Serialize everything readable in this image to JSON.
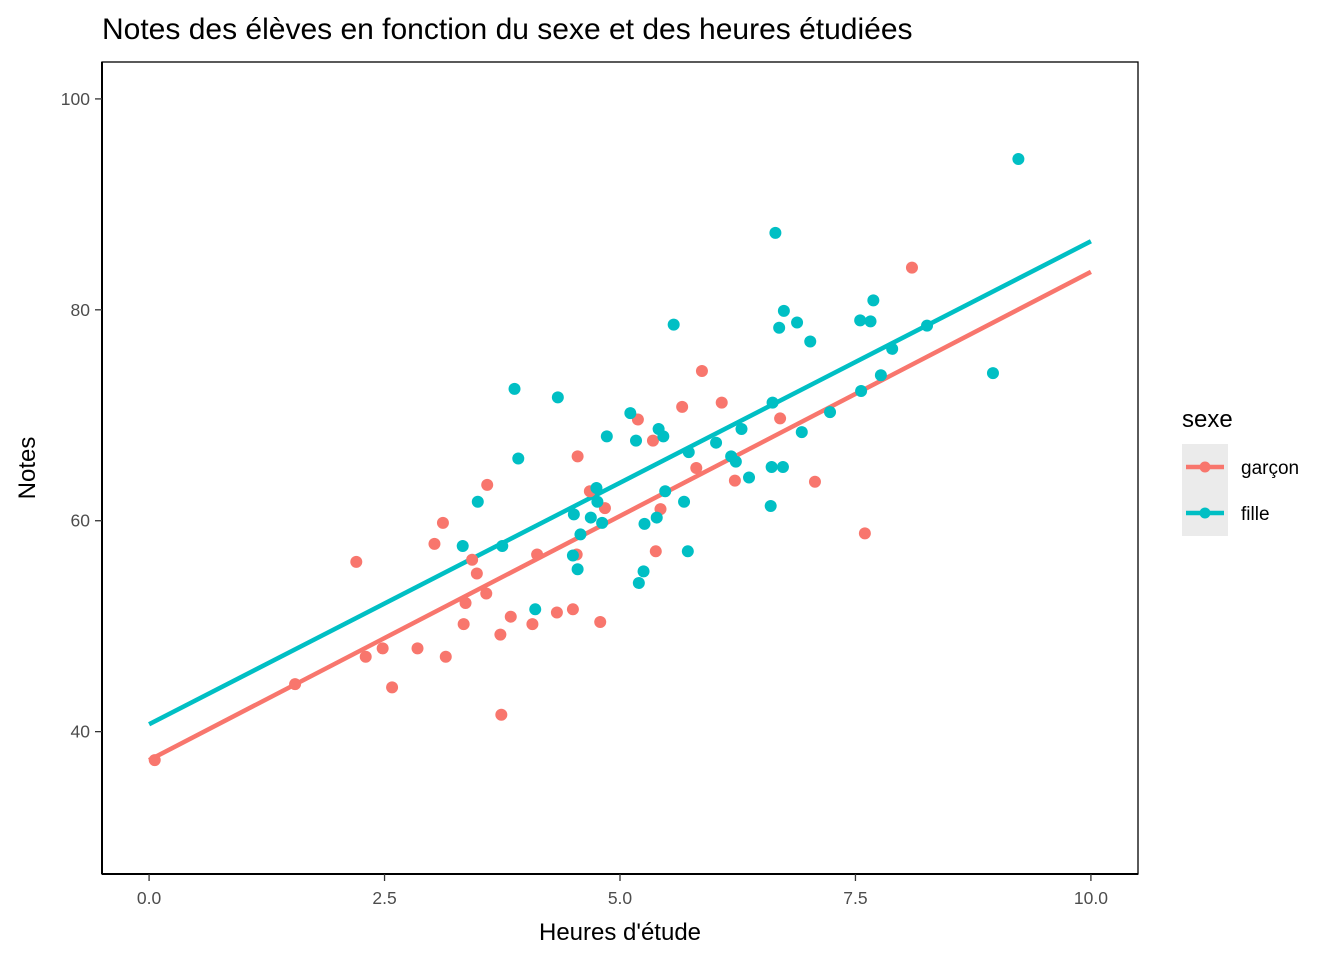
{
  "chart_data": {
    "type": "scatter",
    "title": "Notes des élèves en fonction du sexe et des heures étudiées",
    "xlabel": "Heures d'étude",
    "ylabel": "Notes",
    "xlim": [
      -0.5,
      10.5
    ],
    "ylim": [
      26.5,
      103.5
    ],
    "xticks": [
      0,
      2.5,
      5,
      7.5,
      10
    ],
    "xtick_labels": [
      "0.0",
      "2.5",
      "5.0",
      "7.5",
      "10.0"
    ],
    "yticks": [
      40,
      60,
      80,
      100
    ],
    "ytick_labels": [
      "40",
      "60",
      "80",
      "100"
    ],
    "grid": false,
    "legend": {
      "title": "sexe",
      "position": "right"
    },
    "series": [
      {
        "name": "garçon",
        "color": "#F8766D",
        "fit": {
          "x": [
            0.0,
            10.0
          ],
          "y": [
            37.3,
            83.6
          ]
        },
        "points": [
          [
            0.06,
            37.3
          ],
          [
            1.55,
            44.5
          ],
          [
            2.2,
            56.1
          ],
          [
            2.3,
            47.1
          ],
          [
            2.48,
            47.9
          ],
          [
            2.58,
            44.2
          ],
          [
            2.85,
            47.9
          ],
          [
            3.03,
            57.8
          ],
          [
            3.12,
            59.8
          ],
          [
            3.15,
            47.1
          ],
          [
            3.34,
            50.2
          ],
          [
            3.36,
            52.2
          ],
          [
            3.43,
            56.3
          ],
          [
            3.48,
            55.0
          ],
          [
            3.58,
            53.1
          ],
          [
            3.59,
            63.4
          ],
          [
            3.73,
            49.2
          ],
          [
            3.74,
            41.6
          ],
          [
            3.84,
            50.9
          ],
          [
            4.07,
            50.2
          ],
          [
            4.12,
            56.8
          ],
          [
            4.33,
            51.3
          ],
          [
            4.5,
            51.6
          ],
          [
            4.54,
            56.8
          ],
          [
            4.55,
            66.1
          ],
          [
            4.68,
            62.8
          ],
          [
            4.79,
            50.4
          ],
          [
            4.84,
            61.2
          ],
          [
            5.19,
            69.6
          ],
          [
            5.35,
            67.6
          ],
          [
            5.38,
            57.1
          ],
          [
            5.43,
            61.1
          ],
          [
            5.66,
            70.8
          ],
          [
            5.81,
            65.0
          ],
          [
            5.87,
            74.2
          ],
          [
            6.08,
            71.2
          ],
          [
            6.22,
            63.8
          ],
          [
            6.7,
            69.7
          ],
          [
            7.07,
            63.7
          ],
          [
            7.6,
            58.8
          ],
          [
            8.1,
            84.0
          ]
        ]
      },
      {
        "name": "fille",
        "color": "#00BFC4",
        "fit": {
          "x": [
            0.0,
            10.0
          ],
          "y": [
            40.7,
            86.5
          ]
        },
        "points": [
          [
            3.33,
            57.6
          ],
          [
            3.49,
            61.8
          ],
          [
            3.75,
            57.6
          ],
          [
            3.88,
            72.5
          ],
          [
            3.92,
            65.9
          ],
          [
            4.1,
            51.6
          ],
          [
            4.34,
            71.7
          ],
          [
            4.5,
            56.7
          ],
          [
            4.51,
            60.6
          ],
          [
            4.55,
            55.4
          ],
          [
            4.58,
            58.7
          ],
          [
            4.69,
            60.3
          ],
          [
            4.75,
            63.1
          ],
          [
            4.76,
            61.8
          ],
          [
            4.81,
            59.8
          ],
          [
            4.86,
            68.0
          ],
          [
            5.11,
            70.2
          ],
          [
            5.17,
            67.6
          ],
          [
            5.2,
            54.1
          ],
          [
            5.25,
            55.2
          ],
          [
            5.26,
            59.7
          ],
          [
            5.39,
            60.3
          ],
          [
            5.41,
            68.7
          ],
          [
            5.46,
            68.0
          ],
          [
            5.48,
            62.8
          ],
          [
            5.57,
            78.6
          ],
          [
            5.68,
            61.8
          ],
          [
            5.72,
            57.1
          ],
          [
            5.73,
            66.5
          ],
          [
            6.02,
            67.4
          ],
          [
            6.18,
            66.1
          ],
          [
            6.23,
            65.6
          ],
          [
            6.29,
            68.7
          ],
          [
            6.37,
            64.1
          ],
          [
            6.6,
            61.4
          ],
          [
            6.61,
            65.1
          ],
          [
            6.62,
            71.2
          ],
          [
            6.65,
            87.3
          ],
          [
            6.69,
            78.3
          ],
          [
            6.73,
            65.1
          ],
          [
            6.74,
            79.9
          ],
          [
            6.88,
            78.8
          ],
          [
            6.93,
            68.4
          ],
          [
            7.02,
            77.0
          ],
          [
            7.23,
            70.3
          ],
          [
            7.55,
            79.0
          ],
          [
            7.56,
            72.3
          ],
          [
            7.66,
            78.9
          ],
          [
            7.69,
            80.9
          ],
          [
            7.77,
            73.8
          ],
          [
            7.89,
            76.3
          ],
          [
            8.26,
            78.5
          ],
          [
            8.96,
            74.0
          ],
          [
            9.23,
            94.3
          ]
        ]
      }
    ]
  }
}
